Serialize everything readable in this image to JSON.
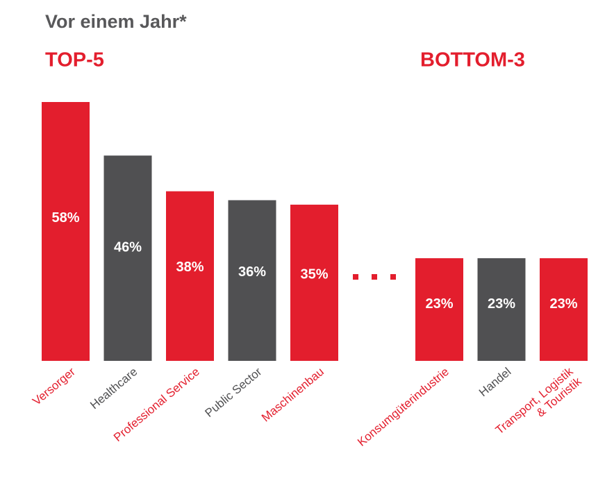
{
  "title": "Vor einem Jahr*",
  "chart_data": [
    {
      "type": "bar",
      "title": "TOP-5",
      "categories": [
        "Versorger",
        "Healthcare",
        "Professional Service",
        "Public Sector",
        "Maschinenbau"
      ],
      "values": [
        58,
        46,
        38,
        36,
        35
      ],
      "value_labels": [
        "58%",
        "46%",
        "38%",
        "36%",
        "35%"
      ],
      "colors": [
        "#e31e2d",
        "#505052",
        "#e31e2d",
        "#505052",
        "#e31e2d"
      ]
    },
    {
      "type": "bar",
      "title": "BOTTOM-3",
      "categories": [
        "Konsumgüterindustrie",
        "Handel",
        "Transport, Logistik\n& Touristik"
      ],
      "values": [
        23,
        23,
        23
      ],
      "value_labels": [
        "23%",
        "23%",
        "23%"
      ],
      "colors": [
        "#e31e2d",
        "#505052",
        "#e31e2d"
      ]
    }
  ]
}
